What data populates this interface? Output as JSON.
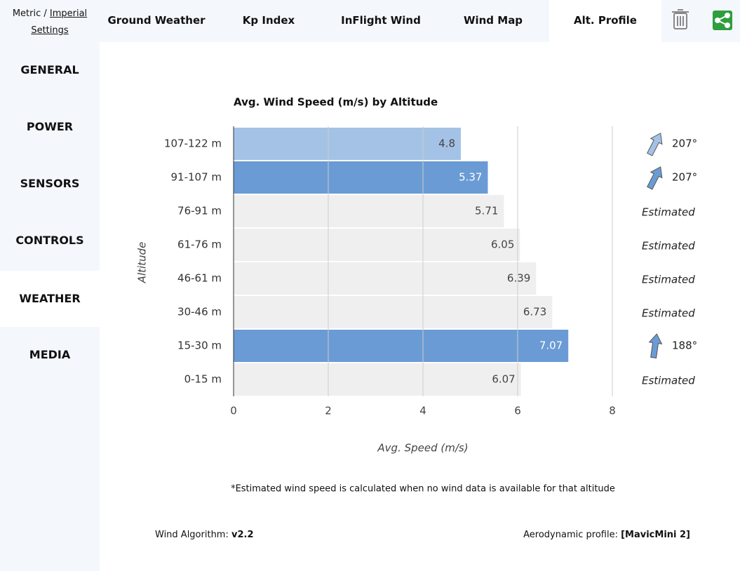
{
  "settings": {
    "prefix": "Metric /",
    "imperial": "Imperial",
    "link": "Settings"
  },
  "tabs": [
    "Ground Weather",
    "Kp Index",
    "InFlight Wind",
    "Wind Map",
    "Alt. Profile"
  ],
  "sidebar": [
    "GENERAL",
    "POWER",
    "SENSORS",
    "CONTROLS",
    "WEATHER",
    "MEDIA"
  ],
  "chart_data": {
    "type": "bar",
    "orientation": "horizontal",
    "title": "Avg. Wind Speed (m/s) by Altitude",
    "x_label": "Avg. Speed (m/s)",
    "y_label": "Altitude",
    "categories": [
      "107-122 m",
      "91-107 m",
      "76-91 m",
      "61-76 m",
      "46-61 m",
      "30-46 m",
      "15-30 m",
      "0-15 m"
    ],
    "values": [
      4.8,
      5.37,
      5.71,
      6.05,
      6.39,
      6.73,
      7.07,
      6.07
    ],
    "colors": [
      "#a4c2e6",
      "#6a9bd4",
      "#efefef",
      "#efefef",
      "#efefef",
      "#efefef",
      "#6a9bd4",
      "#efefef"
    ],
    "value_label_colors": [
      "#444444",
      "#ffffff",
      "#444444",
      "#444444",
      "#444444",
      "#444444",
      "#ffffff",
      "#444444"
    ],
    "directions": [
      207,
      207,
      null,
      null,
      null,
      null,
      188,
      null
    ],
    "direction_labels": [
      "207°",
      "207°",
      "Estimated",
      "Estimated",
      "Estimated",
      "Estimated",
      "188°",
      "Estimated"
    ],
    "xlim": [
      0,
      8
    ],
    "xticks": [
      0,
      2,
      4,
      6,
      8
    ],
    "grid": true
  },
  "footnote": "*Estimated wind speed is calculated when no wind data is available for that altitude",
  "footer": {
    "algorithm_label": "Wind Algorithm:",
    "algorithm_value": "v2.2",
    "profile_label": "Aerodynamic profile:",
    "profile_value": "[MavicMini 2]"
  }
}
